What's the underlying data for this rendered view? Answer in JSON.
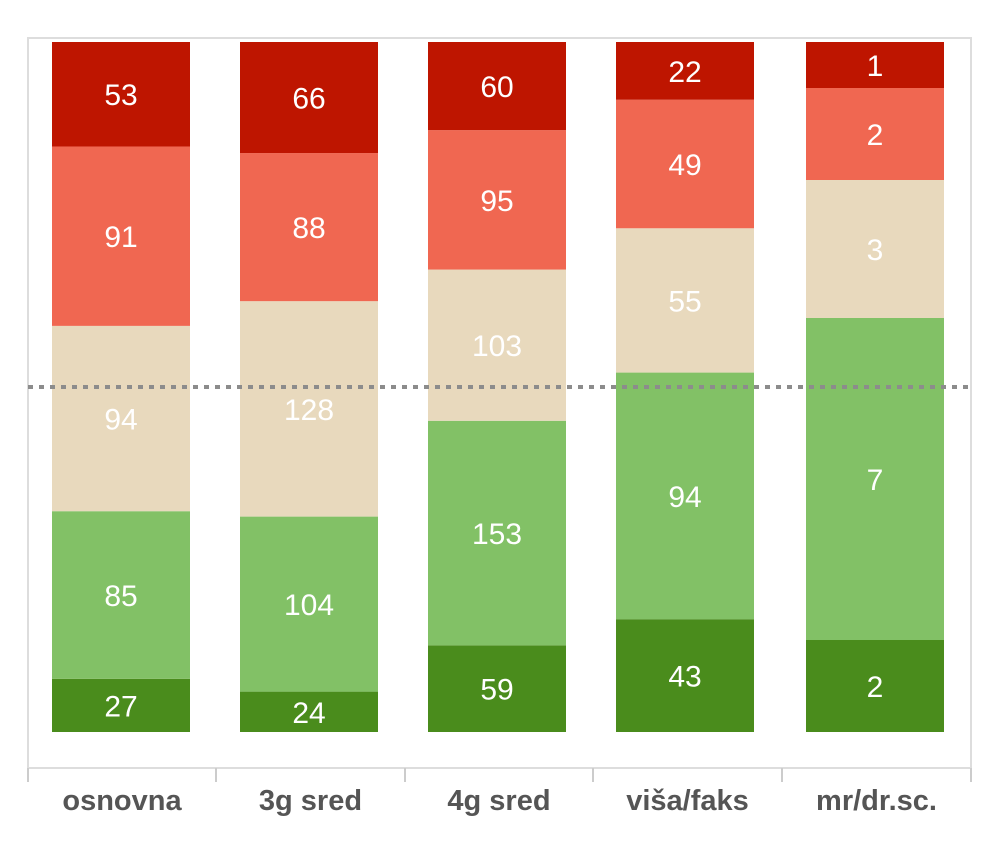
{
  "chart_data": {
    "type": "bar",
    "stacked": true,
    "normalized": true,
    "categories": [
      "osnovna",
      "3g sred",
      "4g sred",
      "viša/faks",
      "mr/dr.sc."
    ],
    "series": [
      {
        "values": [
          27,
          24,
          59,
          43,
          2
        ],
        "color": "#4a8c1c"
      },
      {
        "values": [
          85,
          104,
          153,
          94,
          7
        ],
        "color": "#82c166"
      },
      {
        "values": [
          94,
          128,
          103,
          55,
          3
        ],
        "color": "#e8d9bd"
      },
      {
        "values": [
          91,
          88,
          95,
          49,
          2
        ],
        "color": "#f06751"
      },
      {
        "values": [
          53,
          66,
          60,
          22,
          1
        ],
        "color": "#be1500"
      }
    ],
    "reference_line": {
      "value": 0.5,
      "style": "dotted",
      "color": "#8c8c8c"
    },
    "data_labels": true,
    "legend": "none",
    "grid": false
  }
}
